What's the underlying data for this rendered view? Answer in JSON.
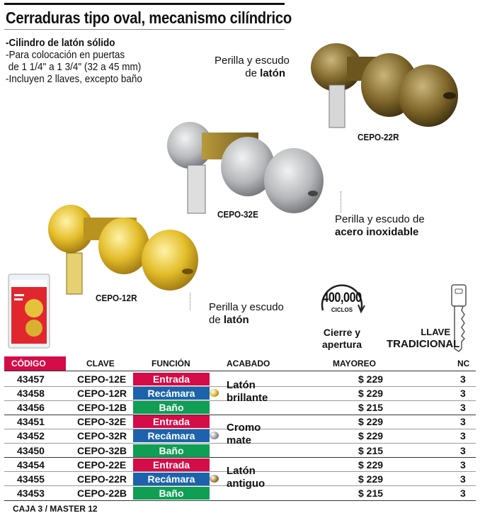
{
  "title": {
    "part1": "Cerraduras tipo oval, mecanismo cilíndrico"
  },
  "features": {
    "line1": "-Cilindro de latón sólido",
    "line2": "-Para colocación en puertas",
    "line3": " de 1 1/4\" a 1 3/4\" (32 a 45 mm)",
    "line4": "-Incluyen 2 llaves, excepto baño"
  },
  "products": {
    "brass_antique": {
      "label_line1": "Perilla y escudo",
      "label_line2_pre": "de ",
      "label_line2_bold": "latón",
      "code": "CEPO-22R"
    },
    "steel": {
      "label_line1": "Perilla y escudo de",
      "label_line2_bold": "acero inoxidable",
      "code": "CEPO-32E"
    },
    "brass_bright": {
      "label_line1": "Perilla y escudo",
      "label_line2_pre": "de ",
      "label_line2_bold": "latón",
      "code": "CEPO-12R"
    }
  },
  "badges": {
    "cycles_number": "400,000",
    "cycles_word": "CICLOS",
    "cycles_caption1": "Cierre y",
    "cycles_caption2": "apertura",
    "key_caption1": "LLAVE",
    "key_caption2": "TRADICIONAL"
  },
  "table": {
    "headers": {
      "codigo": "CÓDIGO",
      "clave": "CLAVE",
      "funcion": "FUNCIÓN",
      "acabado": "ACABADO",
      "mayoreo": "MAYOREO",
      "nc": "NC"
    },
    "rows": [
      {
        "codigo": "43457",
        "clave": "CEPO-12E",
        "funcion": "Entrada",
        "mayoreo": "$ 229",
        "nc": "3"
      },
      {
        "codigo": "43458",
        "clave": "CEPO-12R",
        "funcion": "Recámara",
        "mayoreo": "$ 229",
        "nc": "3"
      },
      {
        "codigo": "43456",
        "clave": "CEPO-12B",
        "funcion": "Baño",
        "mayoreo": "$ 215",
        "nc": "3"
      },
      {
        "codigo": "43451",
        "clave": "CEPO-32E",
        "funcion": "Entrada",
        "mayoreo": "$ 229",
        "nc": "3"
      },
      {
        "codigo": "43452",
        "clave": "CEPO-32R",
        "funcion": "Recámara",
        "mayoreo": "$ 229",
        "nc": "3"
      },
      {
        "codigo": "43450",
        "clave": "CEPO-32B",
        "funcion": "Baño",
        "mayoreo": "$ 215",
        "nc": "3"
      },
      {
        "codigo": "43454",
        "clave": "CEPO-22E",
        "funcion": "Entrada",
        "mayoreo": "$ 229",
        "nc": "3"
      },
      {
        "codigo": "43455",
        "clave": "CEPO-22R",
        "funcion": "Recámara",
        "mayoreo": "$ 229",
        "nc": "3"
      },
      {
        "codigo": "43453",
        "clave": "CEPO-22B",
        "funcion": "Baño",
        "mayoreo": "$ 215",
        "nc": "3"
      }
    ],
    "finishes": [
      {
        "line1": "Latón",
        "line2": "brillante",
        "color": "#e0b526"
      },
      {
        "line1": "Cromo",
        "line2": "mate",
        "color": "#9a9ea3"
      },
      {
        "line1": "Latón",
        "line2": "antiguo",
        "color": "#a2813a"
      }
    ]
  },
  "footer": "CAJA 3 / MASTER 12",
  "colors": {
    "entrada": "#d40c48",
    "recamara": "#1c63ac",
    "bano": "#0f9e54"
  }
}
